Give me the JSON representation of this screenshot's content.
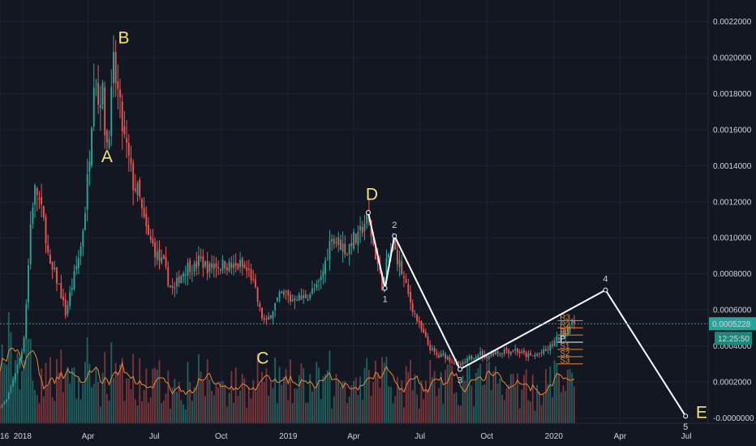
{
  "chart_data": {
    "type": "candlestick",
    "colors": {
      "background": "#131722",
      "up": "#26a69a",
      "down": "#ef5350",
      "volume_up": "#1f6f6a",
      "volume_down": "#8e3a3d",
      "volume_ma": "#e8883a",
      "wave": "#ffffff",
      "abc_label": "#f5e27a",
      "pivot_line": "#e8883a",
      "price_tag": "#26a69a"
    },
    "ylim": [
      -3e-05,
      0.00232
    ],
    "y_ticks": [
      "0.0022000",
      "0.0020000",
      "0.0018000",
      "0.0016000",
      "0.0014000",
      "0.0012000",
      "0.0010000",
      "0.0008000",
      "0.0006000",
      "0.0004000",
      "0.0002000",
      "-0.0000000"
    ],
    "y_tick_values": [
      0.0022,
      0.002,
      0.0018,
      0.0016,
      0.0014,
      0.0012,
      0.001,
      0.0008,
      0.0006,
      0.0004,
      0.0002,
      0.0
    ],
    "x_range": [
      "2017-12-01",
      "2020-07-31"
    ],
    "x_ticks": [
      {
        "label": "16",
        "date": "2017-12-01"
      },
      {
        "label": "2018",
        "date": "2018-01-01"
      },
      {
        "label": "Apr",
        "date": "2018-04-01"
      },
      {
        "label": "Jul",
        "date": "2018-07-01"
      },
      {
        "label": "Oct",
        "date": "2018-10-01"
      },
      {
        "label": "2019",
        "date": "2019-01-01"
      },
      {
        "label": "Apr",
        "date": "2019-04-01"
      },
      {
        "label": "Jul",
        "date": "2019-07-01"
      },
      {
        "label": "Oct",
        "date": "2019-10-01"
      },
      {
        "label": "2020",
        "date": "2020-01-01"
      },
      {
        "label": "Apr",
        "date": "2020-04-01"
      },
      {
        "label": "Jul",
        "date": "2020-07-01"
      }
    ],
    "price_path": [
      [
        "2017-12-01",
        6e-05
      ],
      [
        "2017-12-10",
        0.0001
      ],
      [
        "2017-12-22",
        0.00025
      ],
      [
        "2018-01-02",
        0.0004
      ],
      [
        "2018-01-07",
        0.0007
      ],
      [
        "2018-01-13",
        0.00115
      ],
      [
        "2018-01-19",
        0.00128
      ],
      [
        "2018-01-25",
        0.00118
      ],
      [
        "2018-02-01",
        0.00105
      ],
      [
        "2018-02-07",
        0.00083
      ],
      [
        "2018-02-14",
        0.0008
      ],
      [
        "2018-02-21",
        0.00072
      ],
      [
        "2018-03-01",
        0.00058
      ],
      [
        "2018-03-08",
        0.0007
      ],
      [
        "2018-03-15",
        0.00082
      ],
      [
        "2018-03-22",
        0.00095
      ],
      [
        "2018-03-29",
        0.0012
      ],
      [
        "2018-04-05",
        0.0016
      ],
      [
        "2018-04-10",
        0.002
      ],
      [
        "2018-04-15",
        0.00175
      ],
      [
        "2018-04-20",
        0.00185
      ],
      [
        "2018-04-26",
        0.0015
      ],
      [
        "2018-05-01",
        0.00165
      ],
      [
        "2018-05-06",
        0.00195
      ],
      [
        "2018-05-12",
        0.0018
      ],
      [
        "2018-05-19",
        0.00158
      ],
      [
        "2018-05-26",
        0.00145
      ],
      [
        "2018-06-02",
        0.0013
      ],
      [
        "2018-06-09",
        0.00125
      ],
      [
        "2018-06-16",
        0.0011
      ],
      [
        "2018-06-23",
        0.001
      ],
      [
        "2018-06-30",
        0.00095
      ],
      [
        "2018-07-07",
        0.00088
      ],
      [
        "2018-07-14",
        0.00085
      ],
      [
        "2018-07-21",
        0.00075
      ],
      [
        "2018-07-28",
        0.0007
      ],
      [
        "2018-08-04",
        0.00078
      ],
      [
        "2018-08-11",
        0.00082
      ],
      [
        "2018-08-18",
        0.00085
      ],
      [
        "2018-08-25",
        0.00083
      ],
      [
        "2018-09-01",
        0.00088
      ],
      [
        "2018-09-08",
        0.00085
      ],
      [
        "2018-09-15",
        0.00083
      ],
      [
        "2018-09-22",
        0.00086
      ],
      [
        "2018-09-29",
        0.00084
      ],
      [
        "2018-10-06",
        0.00086
      ],
      [
        "2018-10-13",
        0.00084
      ],
      [
        "2018-10-20",
        0.00083
      ],
      [
        "2018-10-27",
        0.00085
      ],
      [
        "2018-11-03",
        0.00082
      ],
      [
        "2018-11-10",
        0.0008
      ],
      [
        "2018-11-17",
        0.0007
      ],
      [
        "2018-11-24",
        0.00058
      ],
      [
        "2018-12-01",
        0.00052
      ],
      [
        "2018-12-08",
        0.00058
      ],
      [
        "2018-12-15",
        0.00064
      ],
      [
        "2018-12-22",
        0.00068
      ],
      [
        "2018-12-29",
        0.00069
      ],
      [
        "2019-01-05",
        0.00065
      ],
      [
        "2019-01-12",
        0.00068
      ],
      [
        "2019-01-19",
        0.00066
      ],
      [
        "2019-01-26",
        0.00068
      ],
      [
        "2019-02-02",
        0.0007
      ],
      [
        "2019-02-09",
        0.00072
      ],
      [
        "2019-02-16",
        0.00078
      ],
      [
        "2019-02-23",
        0.0009
      ],
      [
        "2019-03-02",
        0.00102
      ],
      [
        "2019-03-09",
        0.00098
      ],
      [
        "2019-03-16",
        0.00096
      ],
      [
        "2019-03-23",
        0.00092
      ],
      [
        "2019-03-30",
        0.001
      ],
      [
        "2019-04-06",
        0.00098
      ],
      [
        "2019-04-13",
        0.00106
      ],
      [
        "2019-04-20",
        0.00112
      ],
      [
        "2019-04-27",
        0.00098
      ],
      [
        "2019-05-04",
        0.00085
      ],
      [
        "2019-05-11",
        0.00072
      ],
      [
        "2019-05-18",
        0.0009
      ],
      [
        "2019-05-25",
        0.00095
      ],
      [
        "2019-06-01",
        0.00088
      ],
      [
        "2019-06-08",
        0.00078
      ],
      [
        "2019-06-15",
        0.00068
      ],
      [
        "2019-06-22",
        0.0006
      ],
      [
        "2019-06-29",
        0.00052
      ],
      [
        "2019-07-06",
        0.00046
      ],
      [
        "2019-07-13",
        0.0004
      ],
      [
        "2019-07-20",
        0.00036
      ],
      [
        "2019-07-27",
        0.00034
      ],
      [
        "2019-08-03",
        0.00035
      ],
      [
        "2019-08-10",
        0.00033
      ],
      [
        "2019-08-17",
        0.00031
      ],
      [
        "2019-08-24",
        0.00029
      ],
      [
        "2019-08-31",
        0.0003
      ],
      [
        "2019-09-07",
        0.00033
      ],
      [
        "2019-09-14",
        0.00035
      ],
      [
        "2019-09-21",
        0.00036
      ],
      [
        "2019-09-28",
        0.00034
      ],
      [
        "2019-10-05",
        0.00035
      ],
      [
        "2019-10-12",
        0.00037
      ],
      [
        "2019-10-19",
        0.00036
      ],
      [
        "2019-10-26",
        0.00038
      ],
      [
        "2019-11-02",
        0.00037
      ],
      [
        "2019-11-09",
        0.00038
      ],
      [
        "2019-11-16",
        0.00036
      ],
      [
        "2019-11-23",
        0.00035
      ],
      [
        "2019-11-30",
        0.00034
      ],
      [
        "2019-12-07",
        0.00035
      ],
      [
        "2019-12-14",
        0.00036
      ],
      [
        "2019-12-21",
        0.00037
      ],
      [
        "2019-12-28",
        0.0004
      ],
      [
        "2020-01-04",
        0.00043
      ],
      [
        "2020-01-11",
        0.00046
      ],
      [
        "2020-01-18",
        0.00049
      ],
      [
        "2020-01-25",
        0.00052
      ],
      [
        "2020-01-30",
        0.00053
      ]
    ],
    "wave_points": [
      {
        "label": "",
        "date": "2019-04-21",
        "value": 0.00114
      },
      {
        "label": "1",
        "date": "2019-05-14",
        "value": 0.00072
      },
      {
        "label": "2",
        "date": "2019-05-27",
        "value": 0.00101
      },
      {
        "label": "3",
        "date": "2019-08-25",
        "value": 0.00027
      },
      {
        "label": "4",
        "date": "2020-03-12",
        "value": 0.00071
      },
      {
        "label": "5",
        "date": "2020-06-30",
        "value": 1e-05
      }
    ],
    "abc_labels": [
      {
        "label": "A",
        "date": "2018-04-27",
        "value": 0.00142
      },
      {
        "label": "B",
        "date": "2018-05-20",
        "value": 0.00208
      },
      {
        "label": "C",
        "date": "2018-11-27",
        "value": 0.0003
      },
      {
        "label": "D",
        "date": "2019-04-26",
        "value": 0.00121
      },
      {
        "label": "E",
        "date": "2020-07-22",
        "value": 0.0
      }
    ],
    "pivots": [
      {
        "label": "R3",
        "value": 0.00054
      },
      {
        "label": "R2",
        "value": 0.0005
      },
      {
        "label": "R1",
        "value": 0.00046
      },
      {
        "label": "P",
        "value": 0.00042
      },
      {
        "label": "S1",
        "value": 0.00038
      },
      {
        "label": "S2",
        "value": 0.00034
      },
      {
        "label": "S3",
        "value": 0.0003
      }
    ],
    "pivot_range": [
      "2020-01-06",
      "2020-02-10"
    ],
    "last_price": {
      "value": 0.0005228,
      "label": "0.0005228",
      "countdown": "12:25:50"
    },
    "grid": true,
    "volume_panel": true
  }
}
